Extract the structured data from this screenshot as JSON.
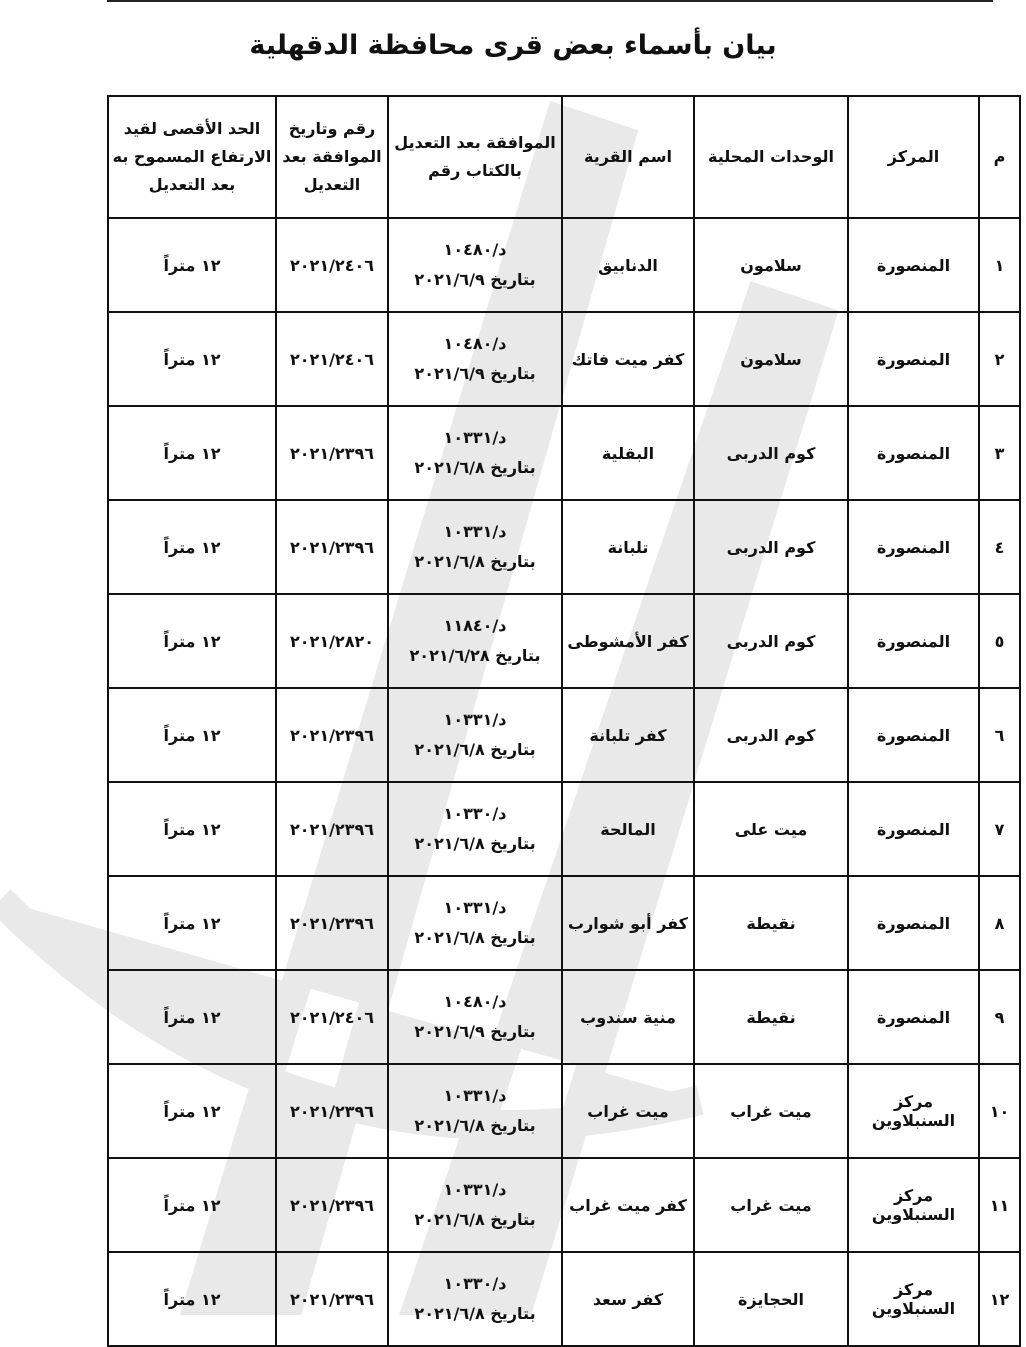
{
  "title": "بيان بأسماء بعض قرى محافظة الدقهلية",
  "headers": [
    "م",
    "المركز",
    "الوحدات المحلية",
    "اسم القرية",
    "الموافقة بعد التعديل بالكتاب رقم",
    "رقم وتاريخ الموافقة بعد التعديل",
    "الحد الأقصى لقيد الارتفاع المسموح به بعد التعديل"
  ],
  "rows": [
    {
      "n": "١",
      "markaz": "المنصورة",
      "unit": "سلامون",
      "village": "الدنابيق",
      "letter": "د/١٠٤٨٠",
      "letter_date": "بتاريخ ٢٠٢١/٦/٩",
      "approval": "٢٠٢١/٢٤٠٦",
      "max": "١٢ متراً"
    },
    {
      "n": "٢",
      "markaz": "المنصورة",
      "unit": "سلامون",
      "village": "كفر ميت فاتك",
      "letter": "د/١٠٤٨٠",
      "letter_date": "بتاريخ ٢٠٢١/٦/٩",
      "approval": "٢٠٢١/٢٤٠٦",
      "max": "١٢ متراً"
    },
    {
      "n": "٣",
      "markaz": "المنصورة",
      "unit": "كوم الدربى",
      "village": "البقلية",
      "letter": "د/١٠٣٣١",
      "letter_date": "بتاريخ ٢٠٢١/٦/٨",
      "approval": "٢٠٢١/٢٣٩٦",
      "max": "١٢ متراً"
    },
    {
      "n": "٤",
      "markaz": "المنصورة",
      "unit": "كوم الدربى",
      "village": "تلبانة",
      "letter": "د/١٠٣٣١",
      "letter_date": "بتاريخ ٢٠٢١/٦/٨",
      "approval": "٢٠٢١/٢٣٩٦",
      "max": "١٢ متراً"
    },
    {
      "n": "٥",
      "markaz": "المنصورة",
      "unit": "كوم الدربى",
      "village": "كفر الأمشوطى",
      "letter": "د/١١٨٤٠",
      "letter_date": "بتاريخ ٢٠٢١/٦/٢٨",
      "approval": "٢٠٢١/٢٨٢٠",
      "max": "١٢ متراً"
    },
    {
      "n": "٦",
      "markaz": "المنصورة",
      "unit": "كوم الدربى",
      "village": "كفر تلبانة",
      "letter": "د/١٠٣٣١",
      "letter_date": "بتاريخ ٢٠٢١/٦/٨",
      "approval": "٢٠٢١/٢٣٩٦",
      "max": "١٢ متراً"
    },
    {
      "n": "٧",
      "markaz": "المنصورة",
      "unit": "ميت على",
      "village": "المالحة",
      "letter": "د/١٠٣٣٠",
      "letter_date": "بتاريخ ٢٠٢١/٦/٨",
      "approval": "٢٠٢١/٢٣٩٦",
      "max": "١٢ متراً"
    },
    {
      "n": "٨",
      "markaz": "المنصورة",
      "unit": "نقيطة",
      "village": "كفر أبو شوارب",
      "letter": "د/١٠٣٣١",
      "letter_date": "بتاريخ ٢٠٢١/٦/٨",
      "approval": "٢٠٢١/٢٣٩٦",
      "max": "١٢ متراً"
    },
    {
      "n": "٩",
      "markaz": "المنصورة",
      "unit": "نقيطة",
      "village": "منية سندوب",
      "letter": "د/١٠٤٨٠",
      "letter_date": "بتاريخ ٢٠٢١/٦/٩",
      "approval": "٢٠٢١/٢٤٠٦",
      "max": "١٢ متراً"
    },
    {
      "n": "١٠",
      "markaz": "مركز السنبلاوين",
      "unit": "ميت غراب",
      "village": "ميت غراب",
      "letter": "د/١٠٣٣١",
      "letter_date": "بتاريخ ٢٠٢١/٦/٨",
      "approval": "٢٠٢١/٢٣٩٦",
      "max": "١٢ متراً"
    },
    {
      "n": "١١",
      "markaz": "مركز السنبلاوين",
      "unit": "ميت غراب",
      "village": "كفر ميت غراب",
      "letter": "د/١٠٣٣١",
      "letter_date": "بتاريخ ٢٠٢١/٦/٨",
      "approval": "٢٠٢١/٢٣٩٦",
      "max": "١٢ متراً"
    },
    {
      "n": "١٢",
      "markaz": "مركز السنبلاوين",
      "unit": "الحجايزة",
      "village": "كفر سعد",
      "letter": "د/١٠٣٣٠",
      "letter_date": "بتاريخ ٢٠٢١/٦/٨",
      "approval": "٢٠٢١/٢٣٩٦",
      "max": "١٢ متراً"
    }
  ]
}
